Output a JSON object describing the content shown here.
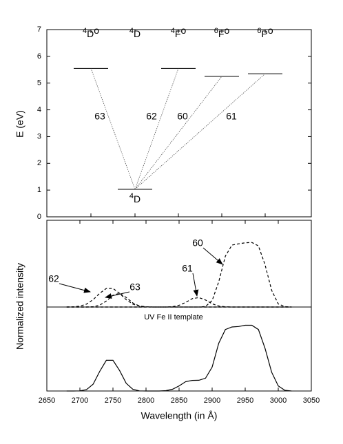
{
  "chart_data": [
    {
      "type": "level-diagram",
      "ylabel": "E (eV)",
      "ylim": [
        0,
        7
      ],
      "yticks": [
        0,
        1,
        2,
        3,
        4,
        5,
        6,
        7
      ],
      "terms": [
        {
          "multiplicity": "4",
          "letter": "D",
          "parity": "o",
          "energy": 5.55,
          "multiplet": "63"
        },
        {
          "multiplicity": "4",
          "letter": "D",
          "energy": 1.03
        },
        {
          "multiplicity": "4",
          "letter": "F",
          "parity": "o",
          "energy": 5.55,
          "multiplet": "62"
        },
        {
          "multiplicity": "6",
          "letter": "F",
          "parity": "o",
          "energy": 5.25,
          "multiplet": "60"
        },
        {
          "multiplicity": "6",
          "letter": "P",
          "parity": "o",
          "energy": 5.35,
          "multiplet": "61"
        }
      ]
    },
    {
      "type": "line",
      "xlabel": "Wavelength (in Å)",
      "ylabel": "Normalized intensity",
      "xlim": [
        2650,
        3050
      ],
      "xticks": [
        2650,
        2700,
        2750,
        2800,
        2850,
        2900,
        2950,
        3000,
        3050
      ],
      "ylim": [
        0,
        1
      ],
      "baseline": 0.492,
      "x": [
        2680,
        2690,
        2700,
        2710,
        2720,
        2730,
        2740,
        2750,
        2760,
        2770,
        2780,
        2790,
        2800,
        2810,
        2820,
        2830,
        2840,
        2850,
        2860,
        2870,
        2880,
        2890,
        2900,
        2910,
        2920,
        2930,
        2940,
        2950,
        2960,
        2970,
        2980,
        2990,
        3000,
        3010,
        3020
      ],
      "series": [
        {
          "name": "62",
          "dashed": true,
          "values": [
            0.492,
            0.493,
            0.497,
            0.509,
            0.535,
            0.572,
            0.601,
            0.601,
            0.572,
            0.535,
            0.509,
            0.497,
            0.493,
            0.492,
            0.492,
            0.492,
            0.492,
            0.492,
            0.492,
            0.492,
            0.492,
            0.492,
            0.492,
            0.492,
            0.492,
            0.492,
            0.492,
            0.492,
            0.492,
            0.492,
            0.492,
            0.492,
            0.492,
            0.492,
            0.492
          ]
        },
        {
          "name": "63",
          "dashed": true,
          "values": [
            0.492,
            0.492,
            0.492,
            0.492,
            0.494,
            0.503,
            0.527,
            0.561,
            0.572,
            0.548,
            0.516,
            0.498,
            0.493,
            0.492,
            0.492,
            0.492,
            0.492,
            0.492,
            0.492,
            0.492,
            0.492,
            0.492,
            0.492,
            0.492,
            0.492,
            0.492,
            0.492,
            0.492,
            0.492,
            0.492,
            0.492,
            0.492,
            0.492,
            0.492,
            0.492
          ]
        },
        {
          "name": "61",
          "dashed": true,
          "values": [
            0.492,
            0.492,
            0.492,
            0.492,
            0.492,
            0.492,
            0.492,
            0.492,
            0.492,
            0.492,
            0.492,
            0.492,
            0.492,
            0.492,
            0.492,
            0.492,
            0.494,
            0.502,
            0.519,
            0.541,
            0.547,
            0.533,
            0.511,
            0.498,
            0.493,
            0.492,
            0.492,
            0.492,
            0.492,
            0.492,
            0.492,
            0.492,
            0.492,
            0.492,
            0.492
          ]
        },
        {
          "name": "60",
          "dashed": true,
          "values": [
            0.492,
            0.492,
            0.492,
            0.492,
            0.492,
            0.492,
            0.492,
            0.492,
            0.492,
            0.492,
            0.492,
            0.492,
            0.492,
            0.492,
            0.492,
            0.492,
            0.492,
            0.492,
            0.492,
            0.492,
            0.492,
            0.495,
            0.53,
            0.64,
            0.79,
            0.855,
            0.862,
            0.868,
            0.87,
            0.85,
            0.74,
            0.59,
            0.51,
            0.494,
            0.492
          ]
        },
        {
          "name": "UV Fe II template",
          "dashed": false,
          "values": [
            0,
            0,
            0.001,
            0.008,
            0.04,
            0.115,
            0.18,
            0.18,
            0.12,
            0.045,
            0.01,
            0.001,
            0,
            0,
            0,
            0.002,
            0.01,
            0.03,
            0.055,
            0.062,
            0.063,
            0.075,
            0.14,
            0.28,
            0.36,
            0.375,
            0.378,
            0.385,
            0.385,
            0.36,
            0.25,
            0.11,
            0.03,
            0.004,
            0
          ]
        }
      ]
    }
  ]
}
